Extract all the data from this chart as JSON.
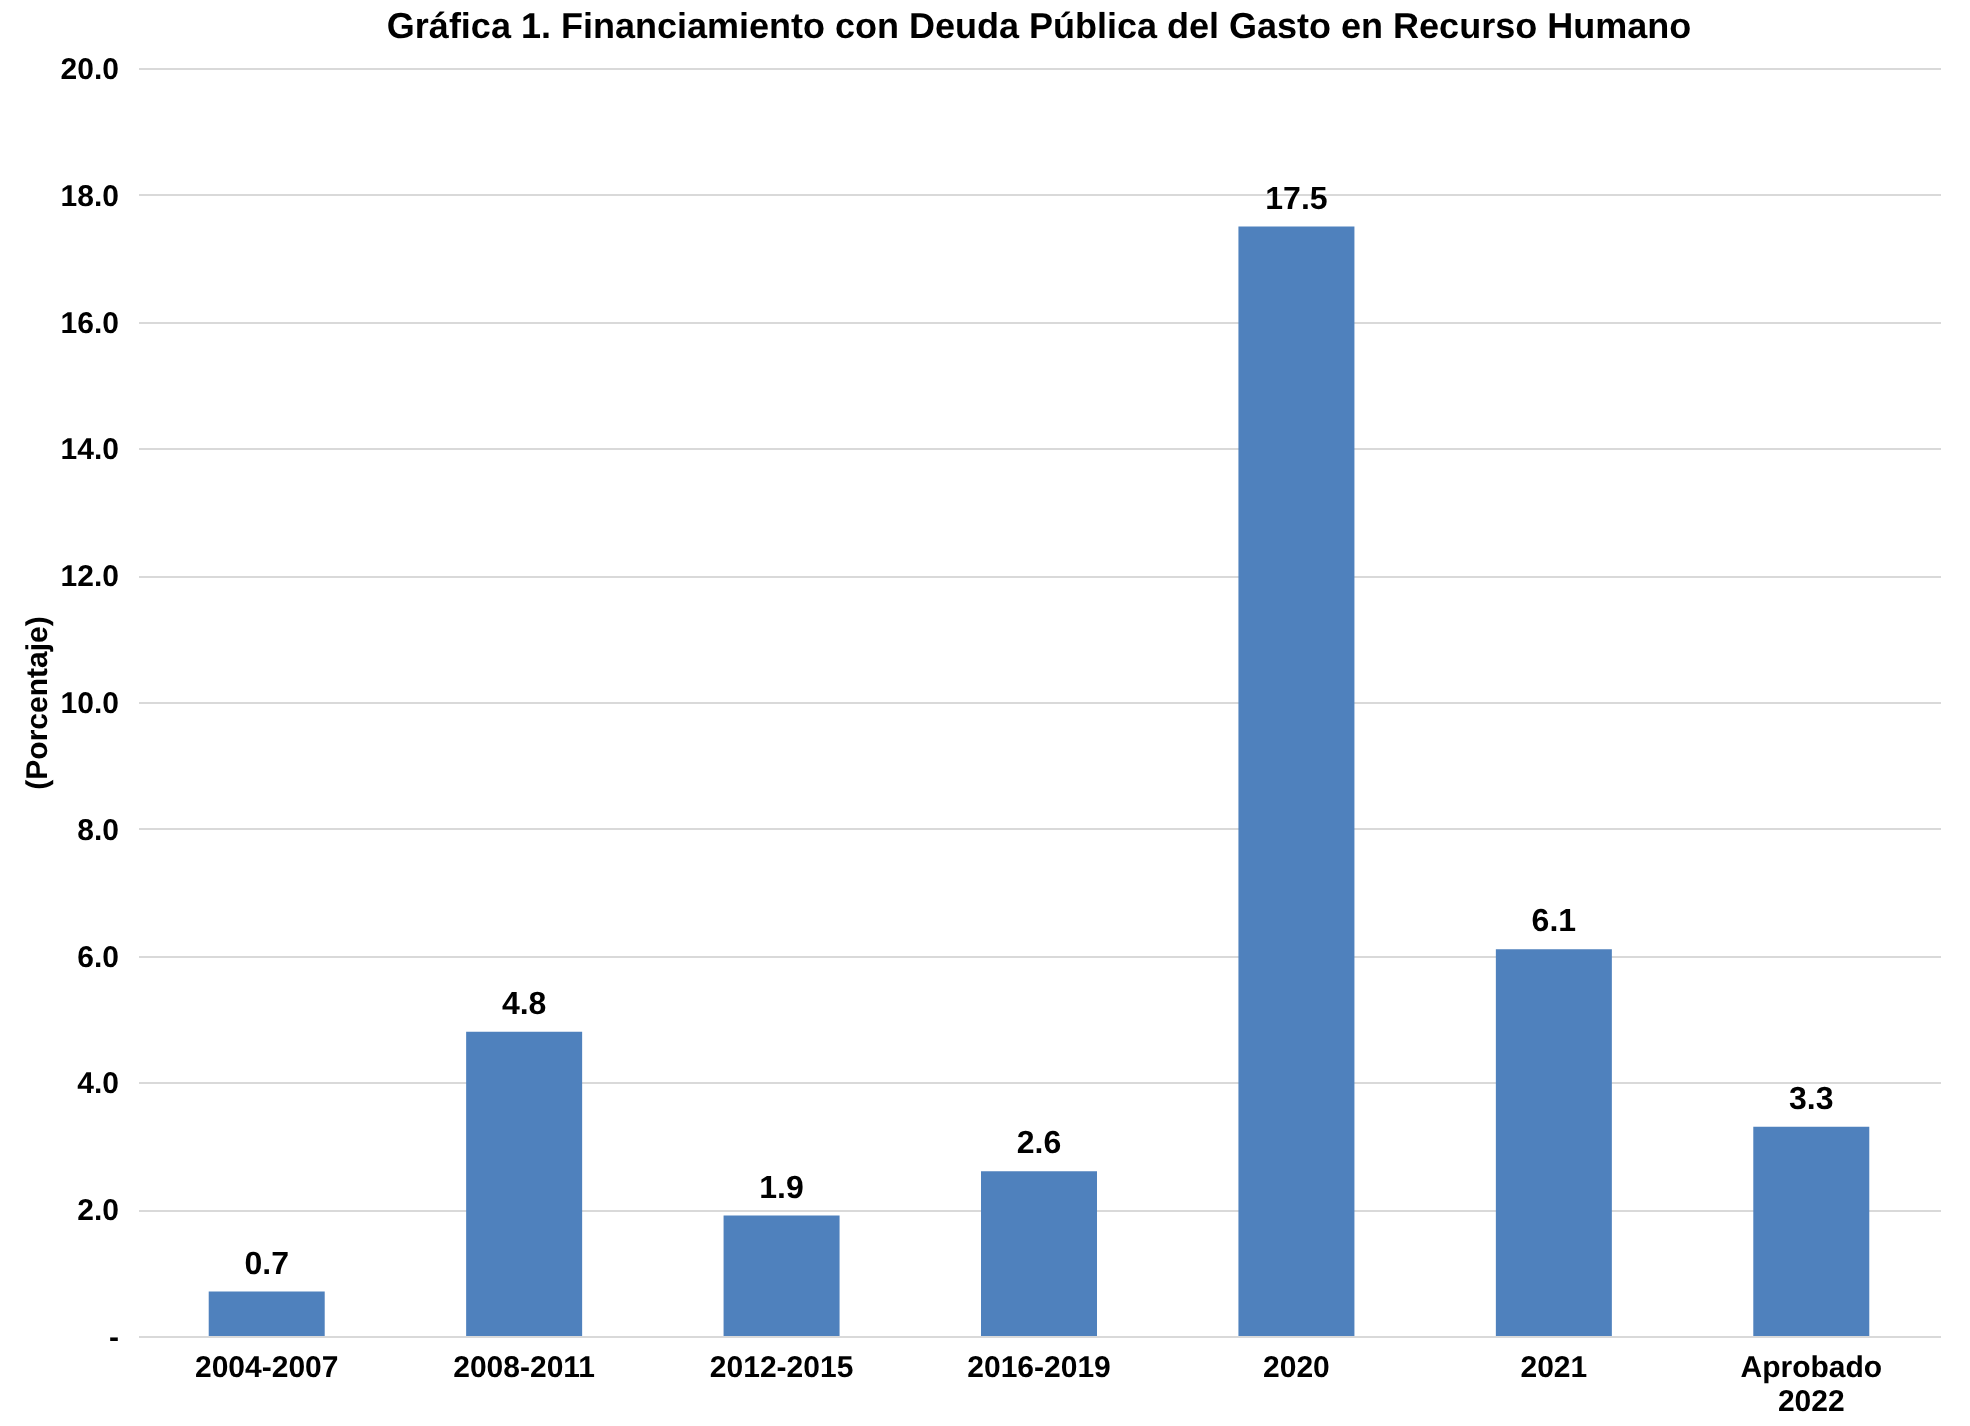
{
  "chart_data": {
    "type": "bar",
    "title": "Gráfica 1. Financiamiento con Deuda Pública del Gasto en Recurso Humano",
    "ylabel": "(Porcentaje)",
    "categories": [
      "2004-2007",
      "2008-2011",
      "2012-2015",
      "2016-2019",
      "2020",
      "2021",
      "Aprobado 2022"
    ],
    "values": [
      0.7,
      4.8,
      1.9,
      2.6,
      17.5,
      6.1,
      3.3
    ],
    "color": "#4f81bd",
    "data_labels": true,
    "ylim": [
      0,
      20
    ],
    "yticks": [
      {
        "value": 0,
        "label": "-"
      },
      {
        "value": 2,
        "label": "2.0"
      },
      {
        "value": 4,
        "label": "4.0"
      },
      {
        "value": 6,
        "label": "6.0"
      },
      {
        "value": 8,
        "label": "8.0"
      },
      {
        "value": 10,
        "label": "10.0"
      },
      {
        "value": 12,
        "label": "12.0"
      },
      {
        "value": 14,
        "label": "14.0"
      },
      {
        "value": 16,
        "label": "16.0"
      },
      {
        "value": 18,
        "label": "18.0"
      },
      {
        "value": 20,
        "label": "20.0"
      }
    ],
    "grid": "y"
  }
}
